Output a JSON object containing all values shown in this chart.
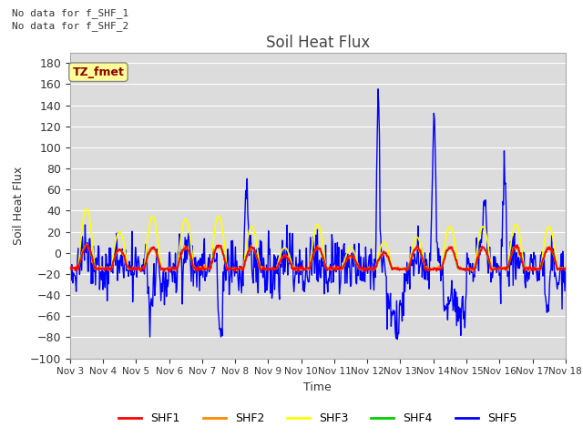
{
  "title": "Soil Heat Flux",
  "ylabel": "Soil Heat Flux",
  "xlabel": "Time",
  "ylim": [
    -100,
    190
  ],
  "yticks": [
    -100,
    -80,
    -60,
    -40,
    -20,
    0,
    20,
    40,
    60,
    80,
    100,
    120,
    140,
    160,
    180
  ],
  "xtick_labels": [
    "Nov 3",
    "Nov 4",
    "Nov 5",
    "Nov 6",
    "Nov 7",
    "Nov 8",
    "Nov 9",
    "Nov 10",
    "Nov 11",
    "Nov 12",
    "Nov 13",
    "Nov 14",
    "Nov 15",
    "Nov 16",
    "Nov 17",
    "Nov 18"
  ],
  "colors": {
    "SHF1": "#ff0000",
    "SHF2": "#ff8800",
    "SHF3": "#ffff00",
    "SHF4": "#00cc00",
    "SHF5": "#0000ff"
  },
  "bg_color": "#dcdcdc",
  "no_data_text1": "No data for f_SHF_1",
  "no_data_text2": "No data for f_SHF_2",
  "legend_label": "TZ_fmet",
  "legend_bg": "#ffff99",
  "legend_border": "#8b0000",
  "n_days": 15,
  "n_pts_per_day": 48
}
